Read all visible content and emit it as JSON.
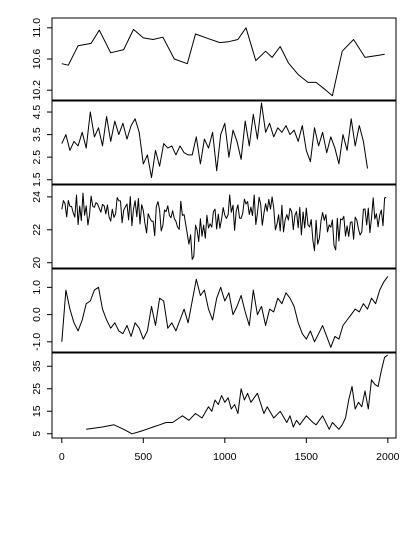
{
  "chart_data": [
    {
      "type": "line",
      "ylim": [
        10.1,
        11.1
      ],
      "yticks": [
        10.2,
        10.6,
        11.0
      ],
      "ytick_labels": [
        "10.2",
        "10.6",
        "11.0"
      ],
      "x": [
        0,
        40,
        100,
        180,
        230,
        300,
        380,
        440,
        500,
        560,
        620,
        690,
        770,
        820,
        900,
        970,
        1020,
        1080,
        1130,
        1190,
        1250,
        1290,
        1340,
        1390,
        1450,
        1510,
        1560,
        1620,
        1660,
        1720,
        1790,
        1860,
        1920,
        1980
      ],
      "y": [
        10.54,
        10.52,
        10.77,
        10.8,
        10.97,
        10.68,
        10.72,
        10.98,
        10.87,
        10.85,
        10.88,
        10.6,
        10.54,
        10.92,
        10.86,
        10.81,
        10.82,
        10.85,
        11.0,
        10.58,
        10.7,
        10.62,
        10.76,
        10.55,
        10.4,
        10.3,
        10.3,
        10.2,
        10.13,
        10.7,
        10.85,
        10.62,
        10.64,
        10.66
      ]
    },
    {
      "type": "line",
      "ylim": [
        1.4,
        4.9
      ],
      "yticks": [
        1.5,
        2.5,
        3.5,
        4.5
      ],
      "ytick_labels": [
        "1.5",
        "2.5",
        "3.5",
        "4.5"
      ],
      "x": [
        0,
        25,
        50,
        75,
        100,
        125,
        150,
        175,
        200,
        225,
        250,
        275,
        300,
        325,
        350,
        375,
        400,
        425,
        450,
        475,
        500,
        525,
        550,
        575,
        600,
        625,
        650,
        675,
        700,
        725,
        750,
        775,
        800,
        825,
        850,
        875,
        900,
        925,
        950,
        975,
        1000,
        1025,
        1050,
        1075,
        1100,
        1125,
        1150,
        1175,
        1200,
        1225,
        1250,
        1275,
        1300,
        1325,
        1350,
        1375,
        1400,
        1425,
        1450,
        1475,
        1500,
        1525,
        1550,
        1575,
        1600,
        1625,
        1650,
        1675,
        1700,
        1725,
        1750,
        1775,
        1800,
        1825,
        1850,
        1875
      ],
      "y": [
        3.1,
        3.5,
        2.8,
        3.2,
        3.0,
        3.6,
        2.9,
        4.5,
        3.4,
        3.8,
        3.0,
        4.3,
        3.2,
        4.1,
        3.5,
        4.0,
        3.3,
        3.9,
        4.2,
        3.6,
        2.2,
        2.6,
        1.6,
        2.8,
        2.1,
        3.1,
        2.9,
        3.0,
        2.6,
        3.0,
        2.7,
        2.6,
        2.6,
        3.4,
        2.2,
        3.3,
        2.9,
        3.6,
        1.9,
        3.5,
        4.0,
        2.5,
        3.7,
        3.2,
        2.4,
        4.1,
        3.0,
        4.4,
        3.3,
        4.9,
        3.6,
        4.0,
        3.4,
        3.8,
        3.6,
        3.9,
        3.5,
        3.7,
        3.2,
        3.9,
        2.8,
        2.3,
        3.8,
        3.0,
        3.6,
        2.7,
        3.4,
        2.9,
        2.2,
        3.5,
        2.8,
        4.2,
        3.0,
        3.9,
        3.2,
        2.0
      ]
    },
    {
      "type": "line",
      "ylim": [
        19.8,
        24.6
      ],
      "yticks": [
        20,
        22,
        24
      ],
      "ytick_labels": [
        "20",
        "22",
        "24"
      ],
      "x_start": 0,
      "x_step": 10,
      "segments": [
        {
          "to": 150,
          "base": 23.1
        },
        {
          "to": 350,
          "base": 23.4
        },
        {
          "to": 480,
          "base": 22.9
        },
        {
          "to": 600,
          "base": 22.7
        },
        {
          "to": 700,
          "base": 22.9
        },
        {
          "to": 760,
          "base": 22.4
        },
        {
          "to": 800,
          "base": 21.3
        },
        {
          "to": 850,
          "base": 22.0
        },
        {
          "to": 950,
          "base": 22.8
        },
        {
          "to": 1250,
          "base": 23.2
        },
        {
          "to": 1450,
          "base": 22.6
        },
        {
          "to": 1550,
          "base": 21.9
        },
        {
          "to": 1700,
          "base": 21.8
        },
        {
          "to": 1850,
          "base": 22.9
        },
        {
          "to": 2000,
          "base": 23.6
        }
      ],
      "noise_amplitude": 1.4
    },
    {
      "type": "line",
      "ylim": [
        -1.3,
        1.6
      ],
      "yticks": [
        -1.0,
        0.0,
        1.0
      ],
      "ytick_labels": [
        "-1.0",
        "0.0",
        "1.0"
      ],
      "x": [
        0,
        25,
        50,
        75,
        100,
        125,
        150,
        175,
        200,
        225,
        250,
        275,
        300,
        325,
        350,
        375,
        400,
        425,
        450,
        475,
        500,
        525,
        550,
        575,
        600,
        625,
        650,
        675,
        700,
        725,
        750,
        775,
        800,
        825,
        850,
        875,
        900,
        925,
        950,
        975,
        1000,
        1025,
        1050,
        1075,
        1100,
        1125,
        1150,
        1175,
        1200,
        1225,
        1250,
        1275,
        1300,
        1325,
        1350,
        1375,
        1400,
        1425,
        1450,
        1475,
        1500,
        1525,
        1550,
        1575,
        1600,
        1625,
        1650,
        1675,
        1700,
        1725,
        1750,
        1775,
        1800,
        1825,
        1850,
        1875,
        1900,
        1925,
        1950,
        1975,
        2000
      ],
      "y": [
        -1.0,
        0.9,
        0.2,
        -0.3,
        -0.6,
        -0.2,
        0.4,
        0.5,
        0.9,
        1.0,
        0.2,
        -0.2,
        -0.5,
        -0.3,
        -0.6,
        -0.7,
        -0.4,
        -0.8,
        -0.3,
        -0.5,
        -0.9,
        -0.6,
        0.3,
        -0.4,
        0.6,
        0.5,
        -0.5,
        -0.3,
        -0.6,
        -0.2,
        0.2,
        -0.3,
        0.5,
        1.3,
        0.7,
        0.9,
        0.2,
        -0.2,
        0.6,
        1.0,
        0.5,
        0.8,
        0.0,
        0.3,
        0.7,
        0.1,
        -0.4,
        0.9,
        0.0,
        0.3,
        -0.4,
        0.2,
        0.1,
        0.6,
        0.4,
        0.8,
        0.6,
        0.3,
        -0.3,
        -0.7,
        -0.9,
        -0.6,
        -1.0,
        -0.7,
        -0.4,
        -0.8,
        -1.2,
        -0.8,
        -0.9,
        -0.4,
        -0.2,
        0.0,
        0.2,
        0.1,
        0.4,
        0.2,
        0.6,
        0.4,
        0.9,
        1.2,
        1.4
      ]
    },
    {
      "type": "line",
      "ylim": [
        4,
        40
      ],
      "yticks": [
        5,
        15,
        25,
        35
      ],
      "ytick_labels": [
        "5",
        "15",
        "25",
        "35"
      ],
      "x": [
        150,
        250,
        320,
        380,
        430,
        480,
        520,
        560,
        600,
        640,
        680,
        720,
        740,
        780,
        820,
        860,
        900,
        920,
        940,
        960,
        980,
        1000,
        1020,
        1040,
        1060,
        1080,
        1100,
        1120,
        1140,
        1160,
        1200,
        1240,
        1260,
        1300,
        1340,
        1380,
        1400,
        1420,
        1440,
        1460,
        1500,
        1540,
        1560,
        1600,
        1640,
        1660,
        1700,
        1720,
        1740,
        1760,
        1780,
        1800,
        1820,
        1840,
        1860,
        1880,
        1900,
        1920,
        1940,
        1960,
        1980,
        2000
      ],
      "y": [
        7,
        8,
        9,
        7,
        5,
        6,
        7,
        8,
        9,
        10,
        10,
        12,
        13,
        11,
        14,
        12,
        17,
        15,
        20,
        18,
        22,
        19,
        21,
        16,
        18,
        14,
        25,
        20,
        23,
        19,
        23,
        14,
        17,
        12,
        15,
        10,
        13,
        8,
        11,
        9,
        13,
        10,
        9,
        13,
        7,
        10,
        7,
        9,
        12,
        20,
        26,
        16,
        19,
        17,
        24,
        16,
        29,
        27,
        26,
        33,
        39,
        40
      ]
    }
  ],
  "x_axis": {
    "xlim": [
      -60,
      2050
    ],
    "ticks": [
      0,
      500,
      1000,
      1500,
      2000
    ],
    "tick_labels": [
      "0",
      "500",
      "1000",
      "1500",
      "2000"
    ]
  }
}
